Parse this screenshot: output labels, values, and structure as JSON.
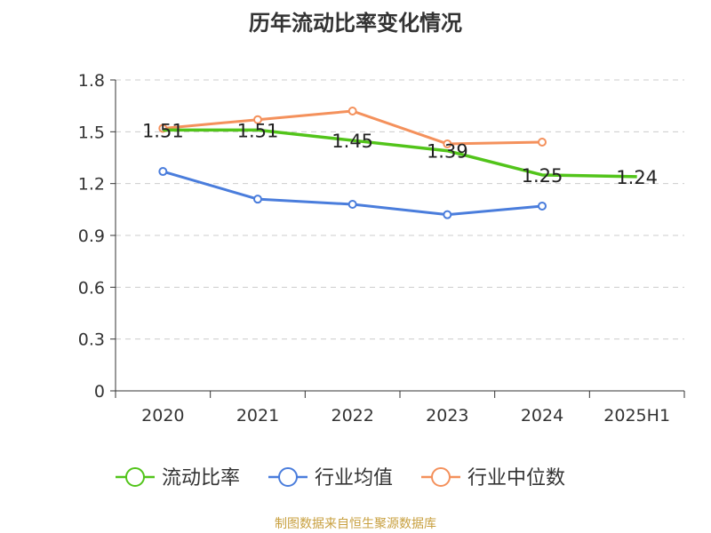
{
  "chart_data": {
    "type": "line",
    "title": "历年流动比率变化情况",
    "categories": [
      "2020",
      "2021",
      "2022",
      "2023",
      "2024",
      "2025H1"
    ],
    "y_ticks": [
      "0",
      "0.3",
      "0.6",
      "0.9",
      "1.2",
      "1.5",
      "1.8"
    ],
    "ylim": [
      0,
      1.8
    ],
    "grid": true,
    "legend_position": "bottom",
    "series": [
      {
        "name": "流动比率",
        "color": "#52c41a",
        "values": [
          1.51,
          1.51,
          1.45,
          1.39,
          1.25,
          1.24
        ],
        "labels": [
          "1.51",
          "1.51",
          "1.45",
          "1.39",
          "1.25",
          "1.24"
        ]
      },
      {
        "name": "行业均值",
        "color": "#4a7ddc",
        "values": [
          1.27,
          1.11,
          1.08,
          1.02,
          1.07,
          null
        ]
      },
      {
        "name": "行业中位数",
        "color": "#f4915c",
        "values": [
          1.52,
          1.57,
          1.62,
          1.43,
          1.44,
          null
        ]
      }
    ]
  },
  "source_note": "制图数据来自恒生聚源数据库"
}
